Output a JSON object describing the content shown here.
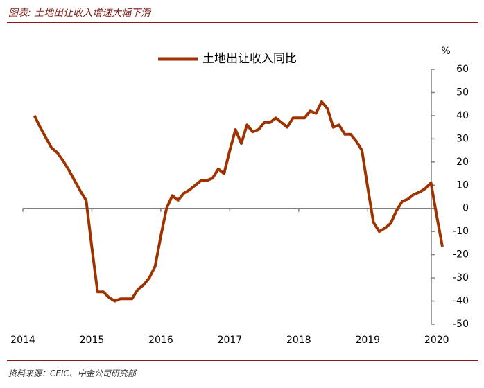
{
  "header": {
    "title": "图表: 土地出让收入增速大幅下滑"
  },
  "footer": {
    "source": "资料来源：CEIC、中金公司研究部"
  },
  "chart_data": {
    "type": "line",
    "y_unit": "%",
    "legend": "top",
    "xlim": [
      2014,
      2020.1
    ],
    "xticks": [
      2014,
      2015,
      2016,
      2017,
      2018,
      2019,
      2020
    ],
    "ylim": [
      -50,
      60
    ],
    "yticks": [
      -50,
      -40,
      -30,
      -20,
      -10,
      0,
      10,
      20,
      30,
      40,
      50,
      60
    ],
    "x": [
      2014.167,
      2014.25,
      2014.333,
      2014.417,
      2014.5,
      2014.583,
      2014.667,
      2014.75,
      2014.833,
      2014.917,
      2015.0,
      2015.083,
      2015.167,
      2015.25,
      2015.333,
      2015.417,
      2015.5,
      2015.583,
      2015.667,
      2015.75,
      2015.833,
      2015.917,
      2016.0,
      2016.083,
      2016.167,
      2016.25,
      2016.333,
      2016.417,
      2016.5,
      2016.583,
      2016.667,
      2016.75,
      2016.833,
      2016.917,
      2017.0,
      2017.083,
      2017.167,
      2017.25,
      2017.333,
      2017.417,
      2017.5,
      2017.583,
      2017.667,
      2017.75,
      2017.833,
      2017.917,
      2018.0,
      2018.083,
      2018.167,
      2018.25,
      2018.333,
      2018.417,
      2018.5,
      2018.583,
      2018.667,
      2018.75,
      2018.833,
      2018.917,
      2019.0,
      2019.083,
      2019.167,
      2019.25,
      2019.333,
      2019.417,
      2019.5,
      2019.583,
      2019.667,
      2019.75,
      2019.833,
      2019.917,
      2020.0,
      2020.083
    ],
    "series": [
      {
        "name": "土地出让收入同比",
        "color": "#9e3300",
        "values": [
          40,
          35,
          30.5,
          26,
          24,
          20.5,
          16.5,
          12,
          7.5,
          3.5,
          -17,
          -36,
          -36,
          -38.5,
          -40,
          -39,
          -39,
          -39,
          -35,
          -33,
          -30,
          -25,
          -12,
          0,
          5.5,
          3.5,
          6.5,
          8,
          10,
          12,
          12,
          13,
          17,
          15,
          25,
          34,
          28,
          36,
          33,
          34,
          37,
          37,
          39,
          37,
          35,
          39,
          39,
          39,
          42,
          41,
          46,
          43,
          35,
          36,
          32,
          32,
          29,
          25,
          9,
          -6,
          -10,
          -8.5,
          -6.5,
          -1,
          3,
          4,
          6,
          7,
          8.5,
          11,
          -3,
          -16.5
        ]
      }
    ]
  }
}
